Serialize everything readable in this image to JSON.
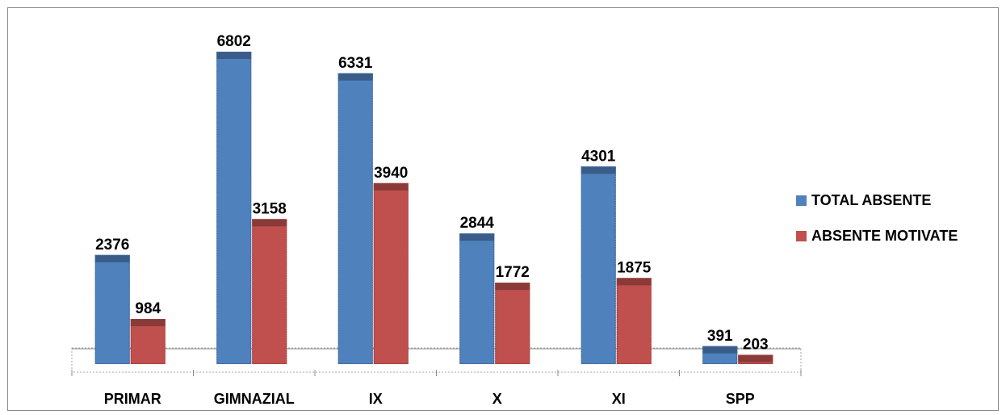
{
  "chart_data": {
    "type": "bar",
    "title": "",
    "xlabel": "",
    "ylabel": "",
    "ylim": [
      0,
      7200
    ],
    "grid": false,
    "legend_position": "right",
    "categories": [
      "PRIMAR",
      "GIMNAZIAL",
      "IX",
      "X",
      "XI",
      "SPP"
    ],
    "series": [
      {
        "name": "TOTAL ABSENTE",
        "color": "#4F81BD",
        "values": [
          2376,
          6802,
          6331,
          2844,
          4301,
          391
        ]
      },
      {
        "name": "ABSENTE MOTIVATE",
        "color": "#C0504D",
        "values": [
          984,
          3158,
          3940,
          1772,
          1875,
          203
        ]
      }
    ]
  }
}
